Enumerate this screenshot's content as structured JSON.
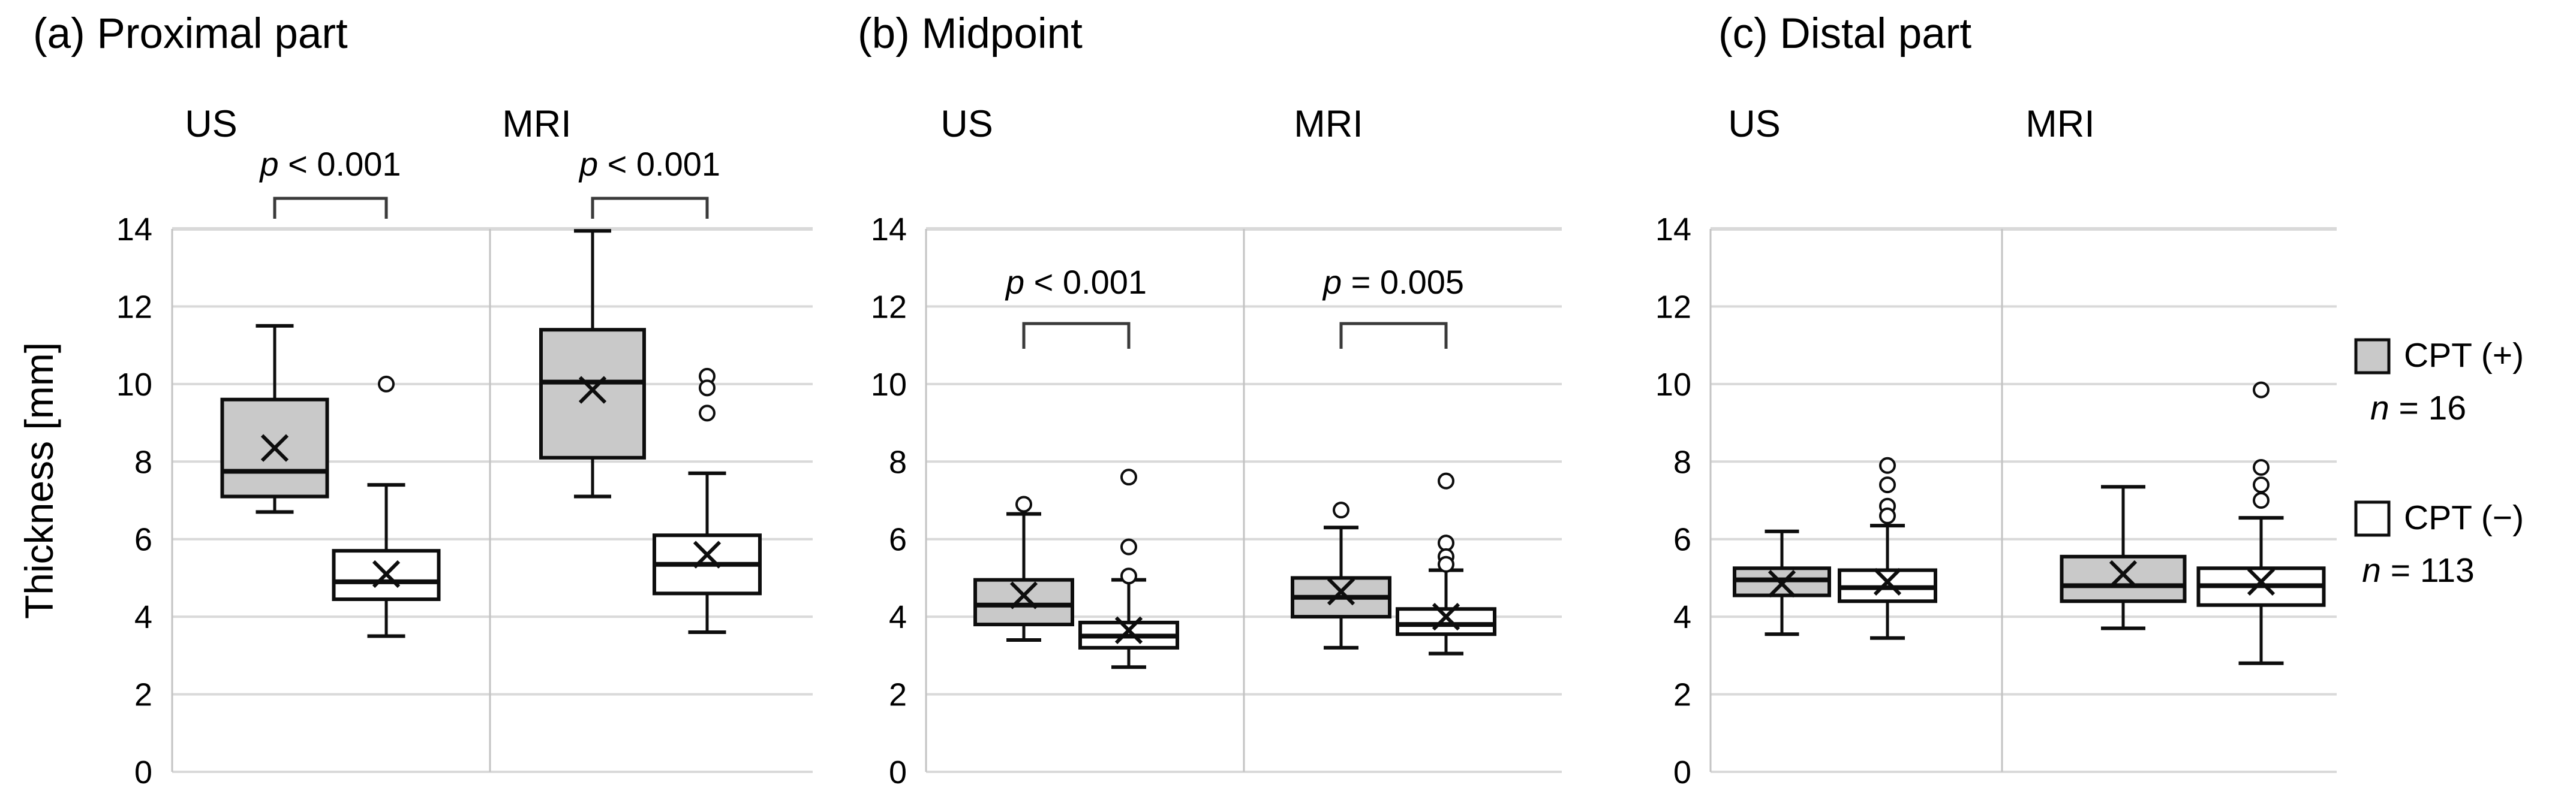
{
  "figure_kind": "boxplot_comparison_figure",
  "ylabel": "Thickness [mm]",
  "legend": {
    "items": [
      {
        "swatch": "gray-square",
        "swatch_color": "#c9c9c9",
        "label": "CPT (+)",
        "count_label": "n = 16"
      },
      {
        "swatch": "white-square",
        "swatch_color": "#ffffff",
        "label": "CPT (−)",
        "count_label": "n = 113"
      }
    ]
  },
  "colors": {
    "box_fill_positive": "#c9c9c9",
    "box_fill_negative": "#ffffff",
    "box_stroke": "#0d0d0d",
    "gridline": "#d9d9d9",
    "axis_line": "#c3c3c3",
    "bracket": "#3a3a3a",
    "text": "#000000"
  },
  "chart_data": {
    "type": "boxplot",
    "ylabel": "Thickness [mm]",
    "ylim": [
      0,
      14
    ],
    "yticks": [
      0,
      2,
      4,
      6,
      8,
      10,
      12,
      14
    ],
    "grid": "horizontal",
    "legend_position": "right",
    "series_names": [
      "CPT (+)",
      "CPT (−)"
    ],
    "panels": [
      {
        "id": "a",
        "label": "(a) Proximal part",
        "annotations": [
          {
            "text": "p < 0.001",
            "group": "US",
            "position": "above-plot"
          },
          {
            "text": "p < 0.001",
            "group": "MRI",
            "position": "above-plot"
          }
        ],
        "groups": [
          {
            "label": "US",
            "boxes": [
              {
                "series": "CPT (+)",
                "min": 6.7,
                "q1": 7.1,
                "median": 7.75,
                "q3": 9.6,
                "max": 11.5,
                "mean": 8.35,
                "outliers": []
              },
              {
                "series": "CPT (−)",
                "min": 3.5,
                "q1": 4.45,
                "median": 4.9,
                "q3": 5.7,
                "max": 7.4,
                "mean": 5.1,
                "outliers": [
                  10.0
                ]
              }
            ]
          },
          {
            "label": "MRI",
            "boxes": [
              {
                "series": "CPT (+)",
                "min": 7.1,
                "q1": 8.1,
                "median": 10.05,
                "q3": 11.4,
                "max": 13.95,
                "mean": 9.85,
                "outliers": []
              },
              {
                "series": "CPT (−)",
                "min": 3.6,
                "q1": 4.6,
                "median": 5.35,
                "q3": 6.1,
                "max": 7.7,
                "mean": 5.6,
                "outliers": [
                  10.2,
                  9.9,
                  9.25
                ]
              }
            ]
          }
        ]
      },
      {
        "id": "b",
        "label": "(b) Midpoint",
        "annotations": [
          {
            "text": "p < 0.001",
            "group": "US",
            "position": "inside-plot"
          },
          {
            "text": "p = 0.005",
            "group": "MRI",
            "position": "inside-plot"
          }
        ],
        "groups": [
          {
            "label": "US",
            "boxes": [
              {
                "series": "CPT (+)",
                "min": 3.4,
                "q1": 3.8,
                "median": 4.3,
                "q3": 4.95,
                "max": 6.65,
                "mean": 4.55,
                "outliers": [
                  6.9
                ]
              },
              {
                "series": "CPT (−)",
                "min": 2.7,
                "q1": 3.2,
                "median": 3.5,
                "q3": 3.85,
                "max": 4.95,
                "mean": 3.65,
                "outliers": [
                  7.6,
                  5.8,
                  5.05
                ]
              }
            ]
          },
          {
            "label": "MRI",
            "boxes": [
              {
                "series": "CPT (+)",
                "min": 3.2,
                "q1": 4.0,
                "median": 4.5,
                "q3": 5.0,
                "max": 6.3,
                "mean": 4.65,
                "outliers": [
                  6.75
                ]
              },
              {
                "series": "CPT (−)",
                "min": 3.05,
                "q1": 3.55,
                "median": 3.8,
                "q3": 4.2,
                "max": 5.2,
                "mean": 4.0,
                "outliers": [
                  7.5,
                  5.9,
                  5.55,
                  5.35
                ]
              }
            ]
          }
        ]
      },
      {
        "id": "c",
        "label": "(c) Distal part",
        "annotations": [],
        "groups": [
          {
            "label": "US",
            "boxes": [
              {
                "series": "CPT (+)",
                "min": 3.55,
                "q1": 4.55,
                "median": 4.95,
                "q3": 5.25,
                "max": 6.2,
                "mean": 4.85,
                "outliers": []
              },
              {
                "series": "CPT (−)",
                "min": 3.45,
                "q1": 4.4,
                "median": 4.75,
                "q3": 5.2,
                "max": 6.35,
                "mean": 4.9,
                "outliers": [
                  7.9,
                  7.4,
                  6.85,
                  6.6
                ]
              }
            ]
          },
          {
            "label": "MRI",
            "boxes": [
              {
                "series": "CPT (+)",
                "min": 3.7,
                "q1": 4.4,
                "median": 4.8,
                "q3": 5.55,
                "max": 7.35,
                "mean": 5.1,
                "outliers": []
              },
              {
                "series": "CPT (−)",
                "min": 2.8,
                "q1": 4.3,
                "median": 4.8,
                "q3": 5.25,
                "max": 6.55,
                "mean": 4.9,
                "outliers": [
                  9.85,
                  7.85,
                  7.4,
                  7.0
                ]
              }
            ]
          }
        ]
      }
    ]
  }
}
